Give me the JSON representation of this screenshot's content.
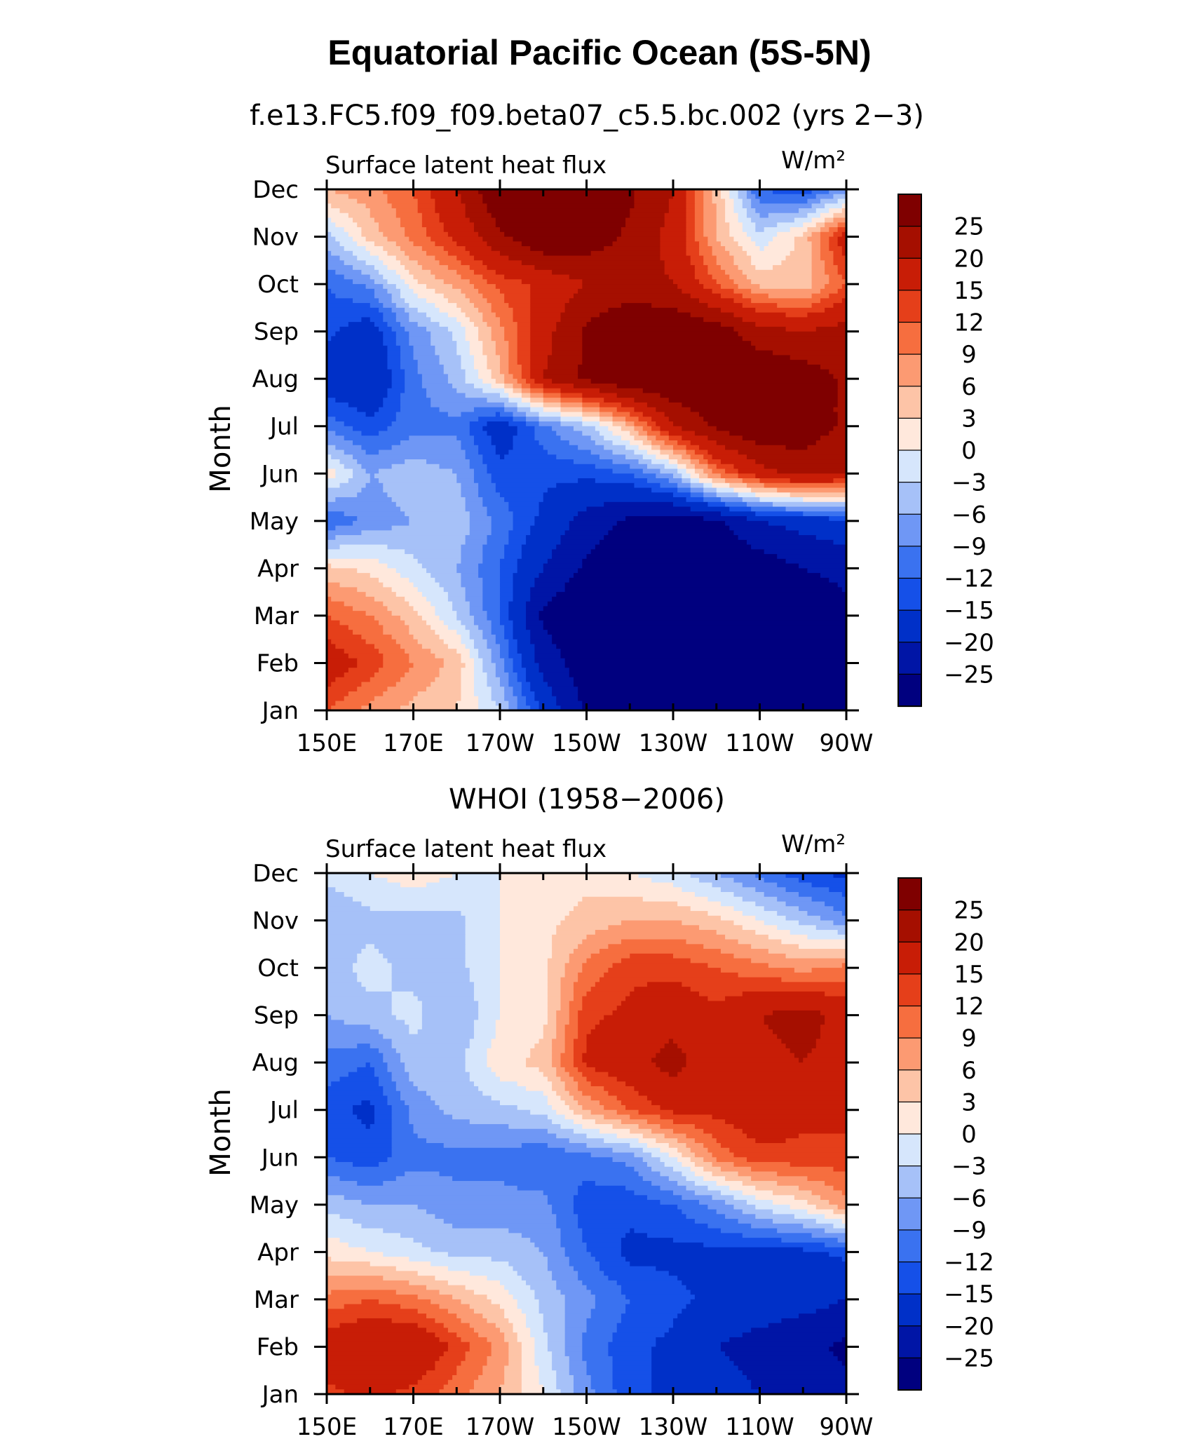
{
  "figure": {
    "title": "Equatorial Pacific Ocean (5S-5N)"
  },
  "chart_data": [
    {
      "type": "heatmap",
      "panel_title": "f.e13.FC5.f09_f09.beta07_c5.5.bc.002 (yrs 2−3)",
      "left_label": "Surface latent heat flux",
      "units_label": "W/m²",
      "ylabel": "Month",
      "xlabel": "",
      "x_tick_labels": [
        "150E",
        "170E",
        "170W",
        "150W",
        "130W",
        "110W",
        "90W"
      ],
      "x_values": [
        150,
        170,
        190,
        210,
        230,
        250,
        270
      ],
      "y_tick_labels": [
        "Jan",
        "Feb",
        "Mar",
        "Apr",
        "May",
        "Jun",
        "Jul",
        "Aug",
        "Sep",
        "Oct",
        "Nov",
        "Dec"
      ],
      "colorbar_labels": [
        "25",
        "20",
        "15",
        "12",
        "9",
        "6",
        "3",
        "0",
        "−3",
        "−6",
        "−9",
        "−12",
        "−15",
        "−20",
        "−25"
      ],
      "colorbar_levels": [
        -25,
        -20,
        -15,
        -12,
        -9,
        -6,
        -3,
        0,
        3,
        6,
        9,
        12,
        15,
        20,
        25
      ],
      "colors": [
        "#00007f",
        "#0015a6",
        "#0030c8",
        "#1550e8",
        "#3a72f0",
        "#6f97f5",
        "#a6c1f8",
        "#d6e6fc",
        "#ffe8dc",
        "#fdc4a7",
        "#fc9a72",
        "#f66e3f",
        "#e53f1a",
        "#c81d06",
        "#a50f00",
        "#7f0000"
      ],
      "grid_x": [
        150,
        160,
        170,
        180,
        190,
        200,
        210,
        220,
        230,
        240,
        250,
        260,
        270
      ],
      "grid_y": [
        1,
        2,
        3,
        4,
        5,
        6,
        7,
        8,
        9,
        10,
        11,
        12
      ],
      "z": [
        [
          12,
          8,
          5,
          3,
          -3,
          -16,
          -26,
          -28,
          -30,
          -30,
          -30,
          -30,
          -28
        ],
        [
          18,
          14,
          9,
          5,
          -8,
          -22,
          -28,
          -30,
          -30,
          -30,
          -30,
          -30,
          -28
        ],
        [
          12,
          9,
          4,
          -3,
          -12,
          -26,
          -30,
          -30,
          -30,
          -30,
          -30,
          -28,
          -26
        ],
        [
          4,
          2,
          -2,
          -6,
          -12,
          -20,
          -26,
          -30,
          -30,
          -30,
          -28,
          -25,
          -24
        ],
        [
          -12,
          -8,
          -6,
          -4,
          -10,
          -16,
          -22,
          -26,
          -28,
          -26,
          -20,
          -18,
          -16
        ],
        [
          2,
          -6,
          -4,
          -6,
          -14,
          -14,
          -14,
          -12,
          -5,
          10,
          18,
          22,
          20
        ],
        [
          -10,
          -14,
          -10,
          -10,
          -18,
          -10,
          -4,
          6,
          20,
          26,
          30,
          28,
          24
        ],
        [
          -18,
          -20,
          -10,
          -5,
          5,
          20,
          26,
          30,
          30,
          30,
          30,
          28,
          24
        ],
        [
          -14,
          -18,
          -8,
          -2,
          8,
          18,
          26,
          30,
          30,
          28,
          22,
          20,
          22
        ],
        [
          -12,
          -8,
          2,
          7,
          13,
          16,
          20,
          22,
          20,
          12,
          5,
          4,
          12
        ],
        [
          -4,
          4,
          10,
          16,
          24,
          30,
          28,
          24,
          18,
          6,
          -2,
          4,
          18
        ],
        [
          6,
          8,
          12,
          20,
          30,
          30,
          30,
          26,
          20,
          5,
          -12,
          -14,
          -8
        ]
      ]
    },
    {
      "type": "heatmap",
      "panel_title": "WHOI (1958−2006)",
      "left_label": "Surface latent heat flux",
      "units_label": "W/m²",
      "ylabel": "Month",
      "xlabel": "",
      "x_tick_labels": [
        "150E",
        "170E",
        "170W",
        "150W",
        "130W",
        "110W",
        "90W"
      ],
      "x_values": [
        150,
        170,
        190,
        210,
        230,
        250,
        270
      ],
      "y_tick_labels": [
        "Jan",
        "Feb",
        "Mar",
        "Apr",
        "May",
        "Jun",
        "Jul",
        "Aug",
        "Sep",
        "Oct",
        "Nov",
        "Dec"
      ],
      "colorbar_labels": [
        "25",
        "20",
        "15",
        "12",
        "9",
        "6",
        "3",
        "0",
        "−3",
        "−6",
        "−9",
        "−12",
        "−15",
        "−20",
        "−25"
      ],
      "colorbar_levels": [
        -25,
        -20,
        -15,
        -12,
        -9,
        -6,
        -3,
        0,
        3,
        6,
        9,
        12,
        15,
        20,
        25
      ],
      "colors": [
        "#00007f",
        "#0015a6",
        "#0030c8",
        "#1550e8",
        "#3a72f0",
        "#6f97f5",
        "#a6c1f8",
        "#d6e6fc",
        "#ffe8dc",
        "#fdc4a7",
        "#fc9a72",
        "#f66e3f",
        "#e53f1a",
        "#c81d06",
        "#a50f00",
        "#7f0000"
      ],
      "grid_x": [
        150,
        160,
        170,
        180,
        190,
        200,
        210,
        220,
        230,
        240,
        250,
        260,
        270
      ],
      "grid_y": [
        1,
        2,
        3,
        4,
        5,
        6,
        7,
        8,
        9,
        10,
        11,
        12
      ],
      "z": [
        [
          14,
          16,
          14,
          10,
          6,
          0,
          -8,
          -14,
          -16,
          -18,
          -20,
          -22,
          -24
        ],
        [
          18,
          20,
          20,
          14,
          8,
          -2,
          -10,
          -14,
          -16,
          -20,
          -22,
          -24,
          -26
        ],
        [
          10,
          12,
          10,
          6,
          2,
          -4,
          -8,
          -12,
          -14,
          -16,
          -17,
          -18,
          -20
        ],
        [
          2,
          0,
          -2,
          -4,
          -4,
          -6,
          -12,
          -16,
          -16,
          -16,
          -16,
          -16,
          -14
        ],
        [
          -4,
          -6,
          -6,
          -8,
          -8,
          -8,
          -14,
          -14,
          -12,
          -8,
          -2,
          2,
          8
        ],
        [
          -12,
          -14,
          -10,
          -10,
          -10,
          -12,
          -10,
          -8,
          0,
          10,
          14,
          14,
          14
        ],
        [
          -14,
          -16,
          -8,
          -5,
          -4,
          -2,
          6,
          12,
          16,
          16,
          18,
          16,
          16
        ],
        [
          -10,
          -12,
          -4,
          -4,
          2,
          4,
          16,
          18,
          22,
          16,
          18,
          20,
          18
        ],
        [
          -6,
          -4,
          -2,
          -6,
          0,
          2,
          14,
          16,
          18,
          16,
          20,
          22,
          18
        ],
        [
          -4,
          -2,
          -4,
          -4,
          0,
          2,
          10,
          14,
          14,
          12,
          10,
          8,
          10
        ],
        [
          -6,
          -4,
          -4,
          -4,
          0,
          2,
          4,
          6,
          6,
          4,
          0,
          -4,
          -8
        ],
        [
          -2,
          0,
          2,
          0,
          0,
          2,
          2,
          0,
          -2,
          -6,
          -10,
          -14,
          -16
        ]
      ]
    }
  ]
}
